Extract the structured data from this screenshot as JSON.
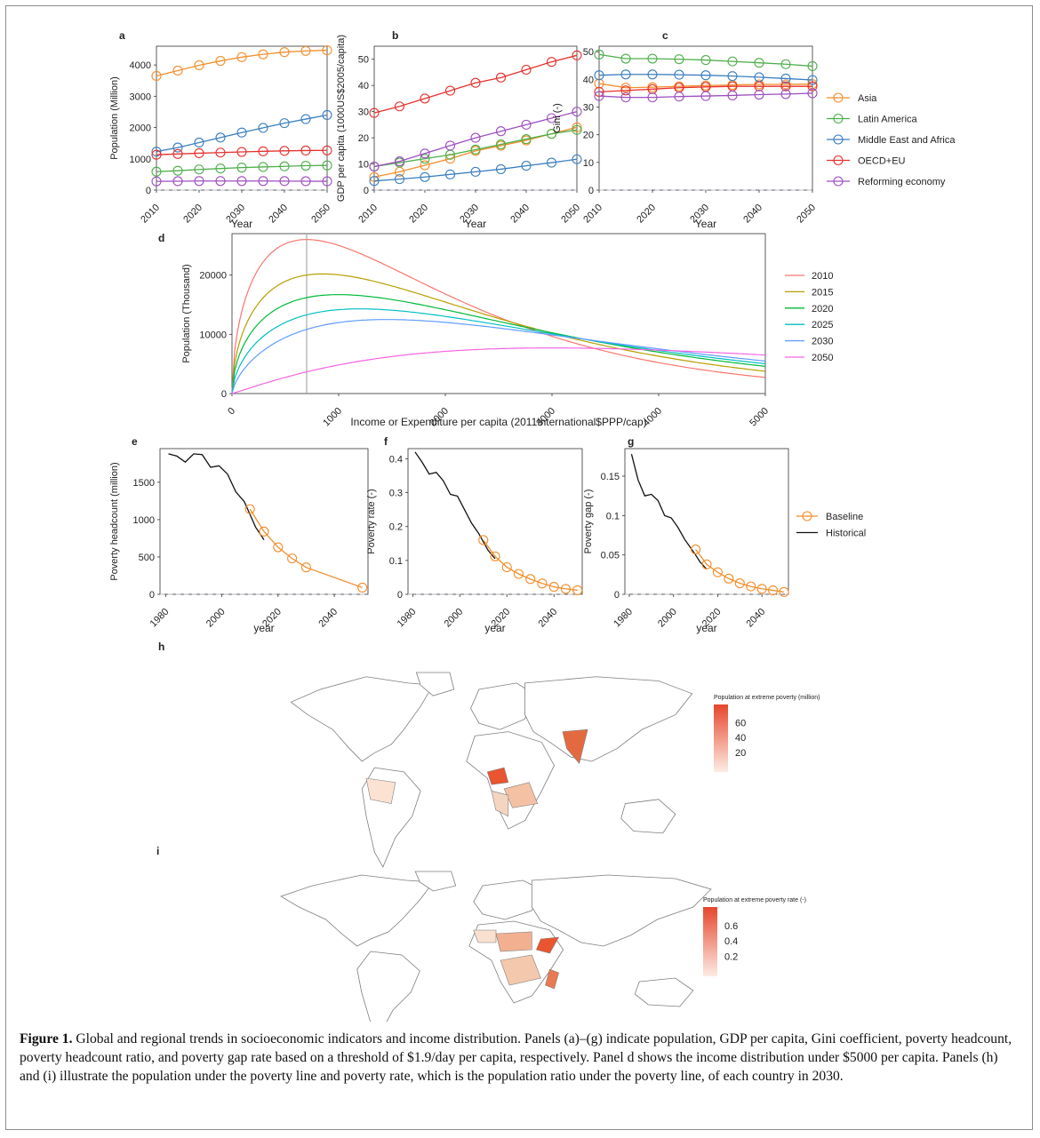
{
  "colors": {
    "asia": "#f28e2b",
    "latin_america": "#4daf4a",
    "mena": "#3a7ebf",
    "oecd": "#e6312d",
    "reforming": "#9c4fc0",
    "historical": "#111111",
    "y2010": "#f8766d",
    "y2015": "#b79f00",
    "y2020": "#00ba38",
    "y2025": "#00bfc4",
    "y2030": "#619cff",
    "y2050": "#f564e3",
    "map_high": "#e6462d",
    "map_low": "#fdece4",
    "map_border": "#7f7f7f"
  },
  "legend_regions": [
    "Asia",
    "Latin America",
    "Middle East and Africa",
    "OECD+EU",
    "Reforming economy"
  ],
  "legend_years": [
    "2010",
    "2015",
    "2020",
    "2025",
    "2030",
    "2050"
  ],
  "legend_scenarios": [
    "Baseline",
    "Historical"
  ],
  "maps": {
    "h": {
      "label": "h",
      "legend_title": "Population at extreme poverty (million)",
      "ticks": [
        "60",
        "40",
        "20"
      ]
    },
    "i": {
      "label": "i",
      "legend_title": "Population at extreme poverty rate (-)",
      "ticks": [
        "0.6",
        "0.4",
        "0.2"
      ]
    }
  },
  "caption": {
    "label": "Figure 1.",
    "text": " Global and regional trends in socioeconomic indicators and income distribution. Panels (a)–(g) indicate population, GDP per capita, Gini coefficient, poverty headcount, poverty headcount ratio, and poverty gap rate based on a threshold of $1.9/day per capita, respectively. Panel d shows the income distribution under $5000 per capita. Panels (h) and (i) illustrate the population under the poverty line and poverty rate, which is the population ratio under the poverty line, of each country in 2030."
  },
  "chart_data": [
    {
      "panel": "a",
      "type": "line",
      "xlabel": "Year",
      "ylabel": "Population (Million)",
      "xlim": [
        2010,
        2050
      ],
      "ylim": [
        0,
        4600
      ],
      "xticks": [
        2010,
        2020,
        2030,
        2040,
        2050
      ],
      "yticks": [
        0,
        1000,
        2000,
        3000,
        4000
      ],
      "x": [
        2010,
        2015,
        2020,
        2025,
        2030,
        2035,
        2040,
        2045,
        2050
      ],
      "series": [
        {
          "name": "Asia",
          "values": [
            3650,
            3820,
            3990,
            4130,
            4250,
            4340,
            4410,
            4450,
            4470
          ]
        },
        {
          "name": "Latin America",
          "values": [
            590,
            620,
            660,
            690,
            720,
            740,
            760,
            780,
            790
          ]
        },
        {
          "name": "Middle East and Africa",
          "values": [
            1230,
            1360,
            1520,
            1680,
            1840,
            1990,
            2140,
            2270,
            2400
          ]
        },
        {
          "name": "OECD+EU",
          "values": [
            1130,
            1155,
            1180,
            1200,
            1220,
            1240,
            1255,
            1265,
            1270
          ]
        },
        {
          "name": "Reforming economy",
          "values": [
            280,
            285,
            290,
            290,
            290,
            290,
            288,
            285,
            282
          ]
        }
      ]
    },
    {
      "panel": "b",
      "type": "line",
      "xlabel": "Year",
      "ylabel": "GDP per capita (1000US$2005/capita)",
      "xlim": [
        2010,
        2050
      ],
      "ylim": [
        0,
        55
      ],
      "xticks": [
        2010,
        2020,
        2030,
        2040,
        2050
      ],
      "yticks": [
        0,
        10,
        20,
        30,
        40,
        50
      ],
      "x": [
        2010,
        2015,
        2020,
        2025,
        2030,
        2035,
        2040,
        2045,
        2050
      ],
      "series": [
        {
          "name": "Asia",
          "values": [
            5,
            7,
            9.5,
            12,
            15,
            17,
            19,
            21.5,
            24
          ]
        },
        {
          "name": "Latin America",
          "values": [
            9,
            10.5,
            12,
            13.5,
            15.5,
            17.5,
            19.5,
            21.5,
            23
          ]
        },
        {
          "name": "Middle East and Africa",
          "values": [
            3.5,
            4.2,
            5,
            6,
            7,
            8,
            9.3,
            10.5,
            11.8
          ]
        },
        {
          "name": "OECD+EU",
          "values": [
            29.5,
            32,
            35,
            38,
            41,
            43,
            46,
            49,
            51.5
          ]
        },
        {
          "name": "Reforming economy",
          "values": [
            9,
            11,
            14,
            17,
            20,
            22.5,
            25,
            27.5,
            30
          ]
        }
      ]
    },
    {
      "panel": "c",
      "type": "line",
      "xlabel": "Year",
      "ylabel": "Gini (-)",
      "xlim": [
        2010,
        2050
      ],
      "ylim": [
        0,
        52
      ],
      "xticks": [
        2010,
        2020,
        2030,
        2040,
        2050
      ],
      "yticks": [
        0,
        10,
        20,
        30,
        40,
        50
      ],
      "x": [
        2010,
        2015,
        2020,
        2025,
        2030,
        2035,
        2040,
        2045,
        2050
      ],
      "series": [
        {
          "name": "Asia",
          "values": [
            38.5,
            37,
            37.2,
            37.5,
            37.8,
            38,
            38.2,
            38.2,
            38.3
          ]
        },
        {
          "name": "Latin America",
          "values": [
            49,
            47.5,
            47.5,
            47.3,
            47,
            46.5,
            46,
            45.5,
            44.8
          ]
        },
        {
          "name": "Middle East and Africa",
          "values": [
            41.5,
            41.8,
            41.8,
            41.7,
            41.5,
            41.2,
            40.8,
            40.3,
            39.8
          ]
        },
        {
          "name": "OECD+EU",
          "values": [
            35.5,
            36,
            36.5,
            37,
            37.3,
            37.5,
            37.5,
            37.5,
            37.5
          ]
        },
        {
          "name": "Reforming economy",
          "values": [
            34,
            33.5,
            33.5,
            33.8,
            34,
            34.2,
            34.5,
            34.7,
            35
          ]
        }
      ]
    },
    {
      "panel": "d",
      "type": "line",
      "xlabel": "Income or Expenditure per capita (2011International$PPP/cap)",
      "ylabel": "Population (Thousand)",
      "xlim": [
        0,
        5000
      ],
      "ylim": [
        0,
        27000
      ],
      "xticks": [
        0,
        1000,
        2000,
        3000,
        4000,
        5000
      ],
      "yticks": [
        0,
        10000,
        20000
      ],
      "vline": 700,
      "series": [
        {
          "name": "2010",
          "peak_x": 700,
          "peak_y": 26000,
          "tail_y": 2700
        },
        {
          "name": "2015",
          "peak_x": 850,
          "peak_y": 20200,
          "tail_y": 3700
        },
        {
          "name": "2020",
          "peak_x": 1000,
          "peak_y": 16700,
          "tail_y": 4600
        },
        {
          "name": "2025",
          "peak_x": 1200,
          "peak_y": 14300,
          "tail_y": 5100
        },
        {
          "name": "2030",
          "peak_x": 1450,
          "peak_y": 12500,
          "tail_y": 5500
        },
        {
          "name": "2050",
          "peak_x": 3000,
          "peak_y": 7700,
          "tail_y": 6500
        }
      ]
    },
    {
      "panel": "e",
      "type": "line",
      "xlabel": "year",
      "ylabel": "Poverty headcount (million)",
      "xlim": [
        1978,
        2052
      ],
      "ylim": [
        0,
        1950
      ],
      "xticks": [
        1980,
        2000,
        2020,
        2040
      ],
      "yticks": [
        0,
        500,
        1000,
        1500
      ],
      "series": [
        {
          "name": "Historical",
          "x": [
            1981,
            1984,
            1987,
            1990,
            1993,
            1996,
            1999,
            2002,
            2005,
            2008,
            2010,
            2012,
            2015
          ],
          "values": [
            1880,
            1850,
            1770,
            1880,
            1870,
            1700,
            1720,
            1610,
            1370,
            1240,
            1070,
            900,
            730
          ]
        },
        {
          "name": "Baseline",
          "x": [
            2010,
            2015,
            2020,
            2025,
            2030,
            2050
          ],
          "values": [
            1140,
            840,
            630,
            480,
            360,
            90
          ]
        }
      ]
    },
    {
      "panel": "f",
      "type": "line",
      "xlabel": "year",
      "ylabel": "Poverty rate (-)",
      "xlim": [
        1978,
        2052
      ],
      "ylim": [
        0,
        0.43
      ],
      "xticks": [
        1980,
        2000,
        2020,
        2040
      ],
      "yticks": [
        0.0,
        0.1,
        0.2,
        0.3,
        0.4
      ],
      "series": [
        {
          "name": "Historical",
          "x": [
            1981,
            1984,
            1987,
            1990,
            1993,
            1996,
            1999,
            2002,
            2005,
            2008,
            2010,
            2012,
            2015
          ],
          "values": [
            0.42,
            0.39,
            0.355,
            0.36,
            0.335,
            0.295,
            0.29,
            0.25,
            0.21,
            0.18,
            0.155,
            0.13,
            0.105
          ]
        },
        {
          "name": "Baseline",
          "x": [
            2010,
            2015,
            2020,
            2025,
            2030,
            2035,
            2040,
            2045,
            2050
          ],
          "values": [
            0.16,
            0.112,
            0.08,
            0.06,
            0.045,
            0.032,
            0.022,
            0.016,
            0.012
          ]
        }
      ]
    },
    {
      "panel": "g",
      "type": "line",
      "xlabel": "year",
      "ylabel": "Poverty gap (-)",
      "xlim": [
        1978,
        2052
      ],
      "ylim": [
        0,
        0.185
      ],
      "xticks": [
        1980,
        2000,
        2020,
        2040
      ],
      "yticks": [
        0.0,
        0.05,
        0.1,
        0.15
      ],
      "series": [
        {
          "name": "Historical",
          "x": [
            1981,
            1984,
            1987,
            1990,
            1993,
            1996,
            1999,
            2002,
            2005,
            2008,
            2010,
            2012,
            2015
          ],
          "values": [
            0.178,
            0.145,
            0.125,
            0.127,
            0.119,
            0.1,
            0.097,
            0.085,
            0.07,
            0.058,
            0.05,
            0.041,
            0.032
          ]
        },
        {
          "name": "Baseline",
          "x": [
            2010,
            2015,
            2020,
            2025,
            2030,
            2035,
            2040,
            2045,
            2050
          ],
          "values": [
            0.057,
            0.038,
            0.028,
            0.02,
            0.014,
            0.01,
            0.007,
            0.005,
            0.003
          ]
        }
      ]
    }
  ]
}
